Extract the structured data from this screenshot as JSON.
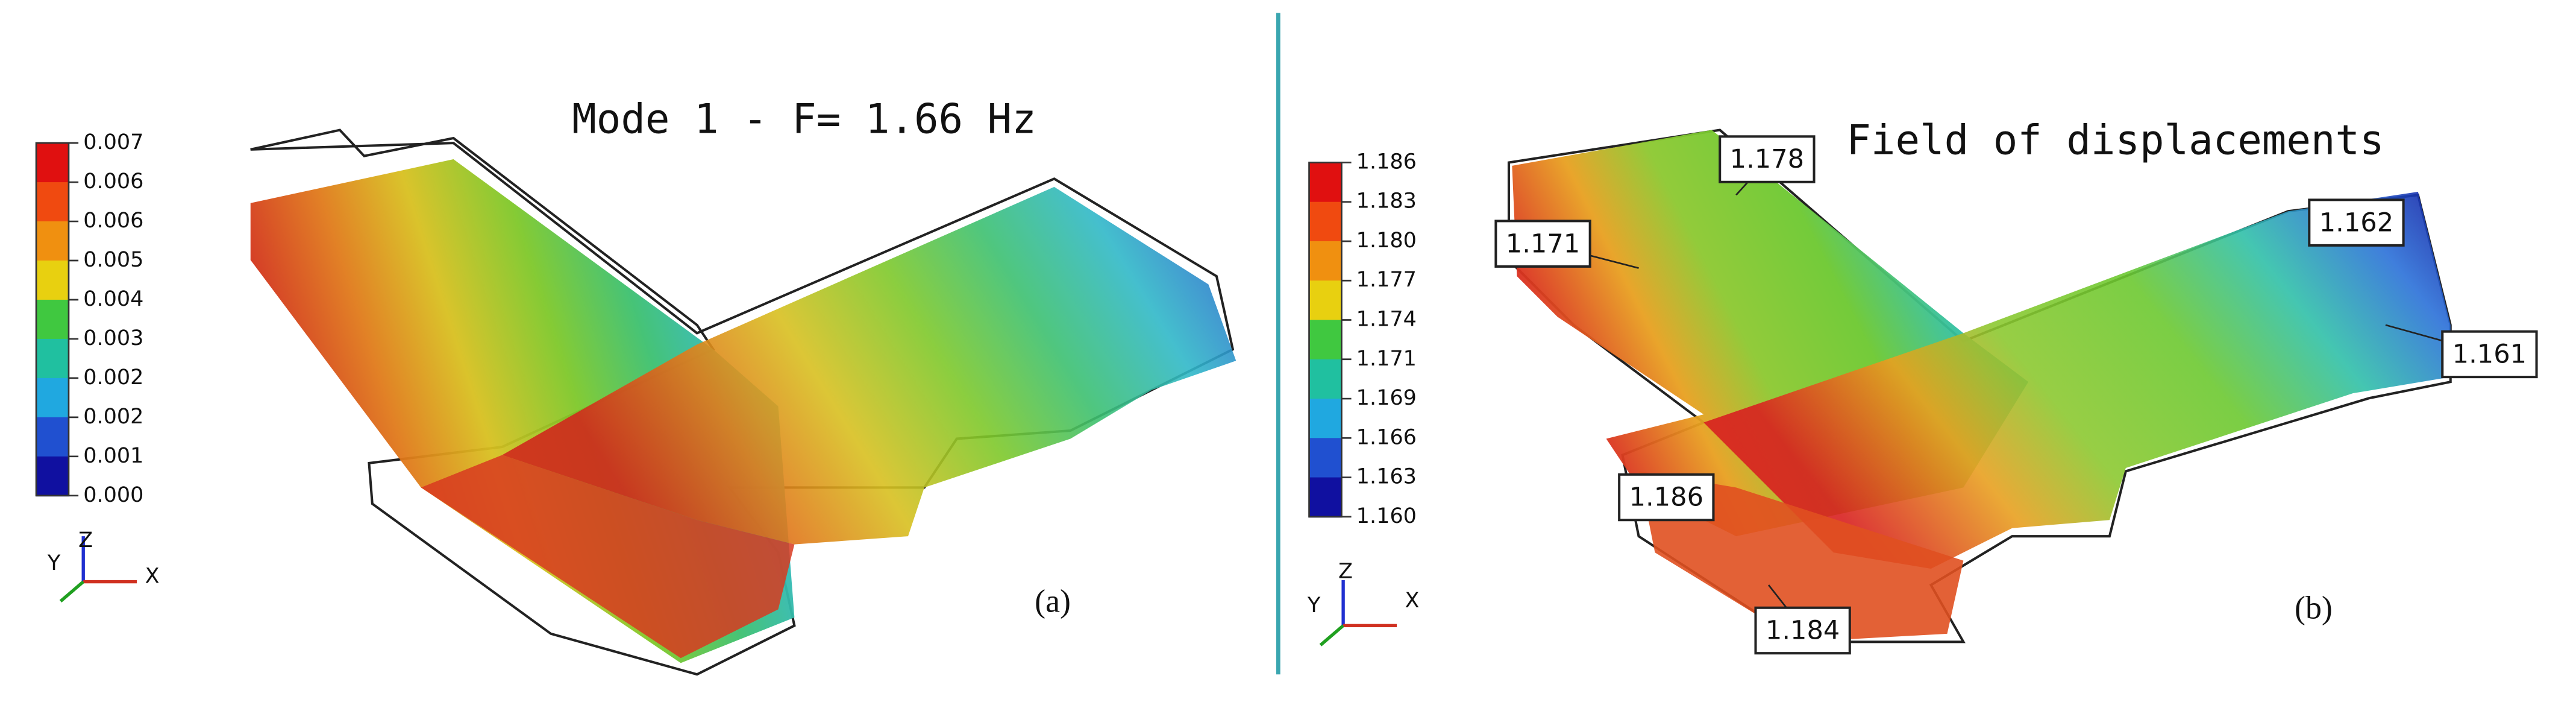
{
  "panel_a": {
    "title": "Mode 1   - F= 1.66 Hz",
    "legend": [
      "0.007",
      "0.006",
      "0.006",
      "0.005",
      "0.004",
      "0.003",
      "0.002",
      "0.002",
      "0.001",
      "0.000"
    ],
    "axes": [
      "Y",
      "Z",
      "X"
    ],
    "caption": "(a)"
  },
  "panel_b": {
    "title": "Field of displacements",
    "legend": [
      "1.186",
      "1.183",
      "1.180",
      "1.177",
      "1.174",
      "1.171",
      "1.169",
      "1.166",
      "1.163",
      "1.160"
    ],
    "axes": [
      "Y",
      "Z",
      "X"
    ],
    "callouts": [
      "1.178",
      "1.171",
      "1.162",
      "1.161",
      "1.186",
      "1.184"
    ],
    "caption": "(b)"
  }
}
